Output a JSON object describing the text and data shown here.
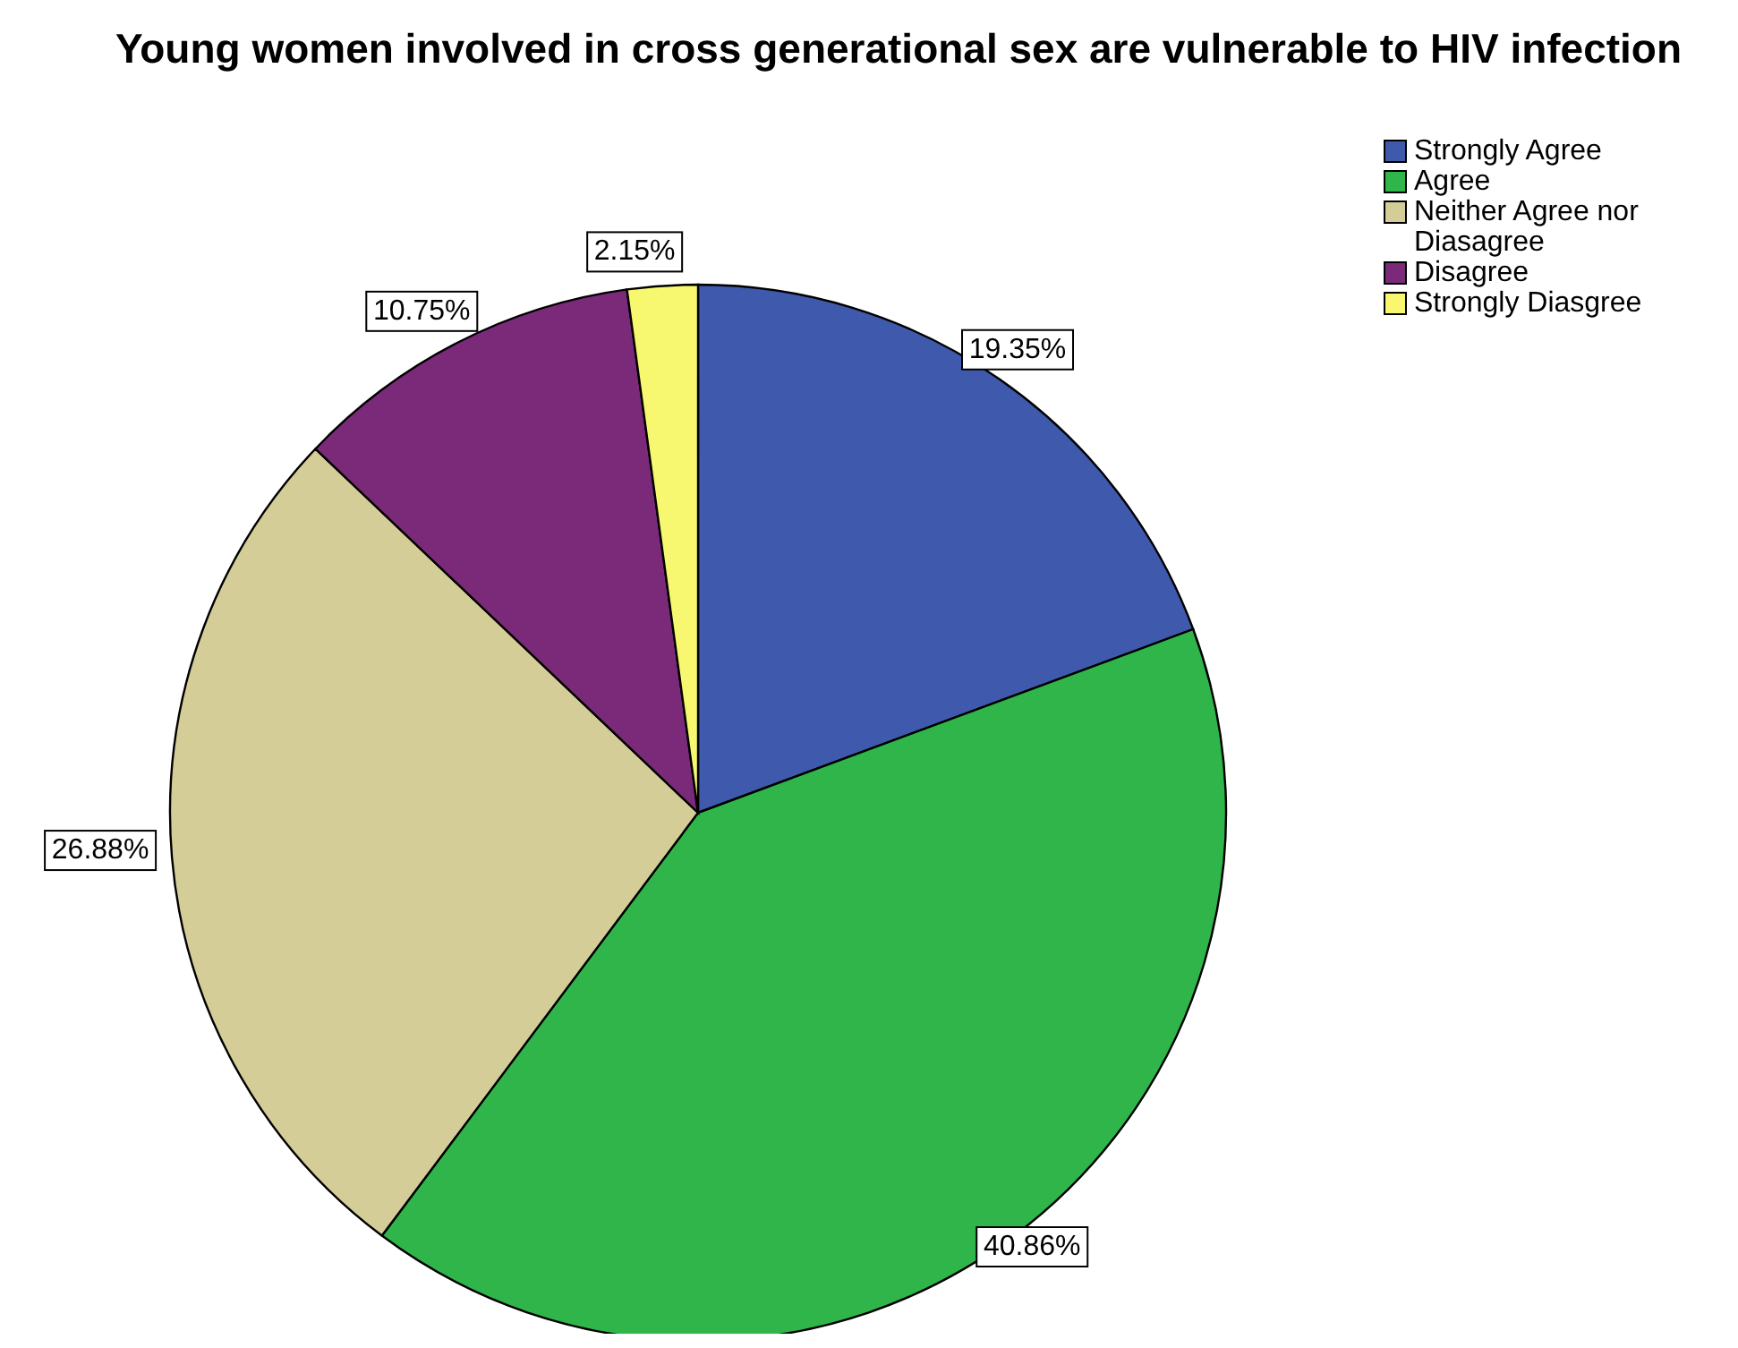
{
  "chart_data": {
    "type": "pie",
    "title": "Young women involved in cross generational sex are vulnerable to HIV infection",
    "categories": [
      "Strongly Agree",
      "Agree",
      "Neither Agree nor Diasagree",
      "Disagree",
      "Strongly Diasgree"
    ],
    "values": [
      19.35,
      40.86,
      26.88,
      10.75,
      2.15
    ],
    "value_labels": [
      "19.35%",
      "40.86%",
      "26.88%",
      "10.75%",
      "2.15%"
    ],
    "colors": [
      "#3f5aac",
      "#2fb54a",
      "#d4cd98",
      "#7b2a7a",
      "#f8f870"
    ],
    "legend": "top right"
  }
}
